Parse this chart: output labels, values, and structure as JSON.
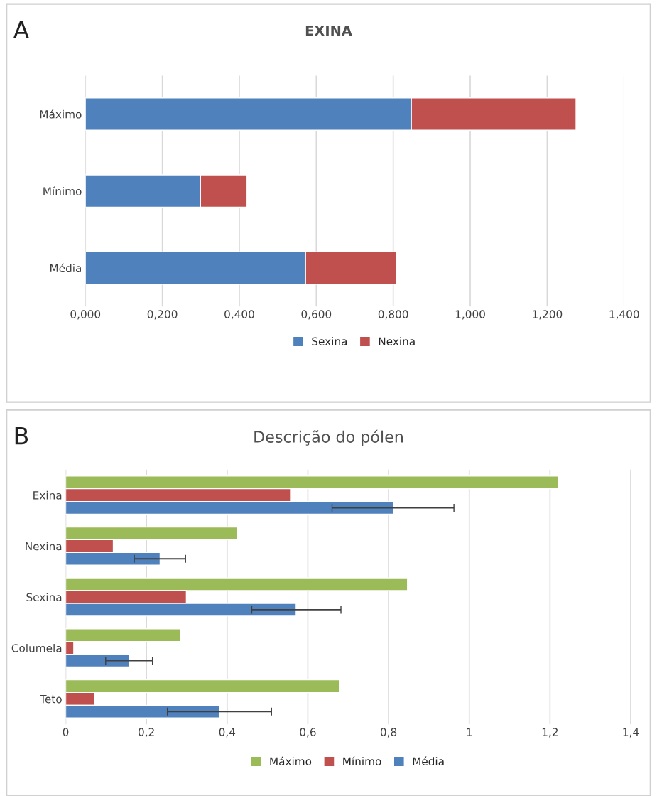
{
  "chart_data": [
    {
      "type": "bar",
      "orientation": "horizontal",
      "stacked": true,
      "title": "EXINA",
      "annotations": [
        "A"
      ],
      "categories": [
        "Máximo",
        "Mínimo",
        "Média"
      ],
      "series": [
        {
          "name": "Sexina",
          "color": "#4f81bd",
          "values": [
            0.847,
            0.299,
            0.572
          ]
        },
        {
          "name": "Nexina",
          "color": "#c0504d",
          "values": [
            0.428,
            0.121,
            0.236
          ]
        }
      ],
      "xlim": [
        0,
        1.4
      ],
      "xticks": [
        {
          "value": 0,
          "label": "0,000"
        },
        {
          "value": 0.2,
          "label": "0,200"
        },
        {
          "value": 0.4,
          "label": "0,400"
        },
        {
          "value": 0.6,
          "label": "0,600"
        },
        {
          "value": 0.8,
          "label": "0,800"
        },
        {
          "value": 1.0,
          "label": "1,000"
        },
        {
          "value": 1.2,
          "label": "1,200"
        },
        {
          "value": 1.4,
          "label": "1,400"
        }
      ],
      "grid": "x",
      "legend": "bottom"
    },
    {
      "type": "bar",
      "orientation": "horizontal",
      "title": "Descrição do pólen",
      "annotations": [
        "B"
      ],
      "categories": [
        "Exina",
        "Nexina",
        "Sexina",
        "Columela",
        "Teto"
      ],
      "series": [
        {
          "name": "Máximo",
          "color": "#9bbb59",
          "values": [
            1.22,
            0.425,
            0.847,
            0.284,
            0.678
          ]
        },
        {
          "name": "Mínimo",
          "color": "#c0504d",
          "values": [
            0.557,
            0.118,
            0.299,
            0.02,
            0.071
          ]
        },
        {
          "name": "Média",
          "color": "#4f81bd",
          "values": [
            0.812,
            0.234,
            0.571,
            0.157,
            0.381
          ],
          "errors": [
            [
              0.66,
              0.962
            ],
            [
              0.17,
              0.297
            ],
            [
              0.461,
              0.682
            ],
            [
              0.099,
              0.215
            ],
            [
              0.252,
              0.51
            ]
          ]
        }
      ],
      "xlim": [
        0,
        1.4
      ],
      "xticks": [
        0,
        {
          "value": 0.2,
          "label": "0,2"
        },
        {
          "value": 0.4,
          "label": "0,4"
        },
        {
          "value": 0.6,
          "label": "0,6"
        },
        {
          "value": 0.8,
          "label": "0,8"
        },
        1,
        {
          "value": 1.2,
          "label": "1,2"
        },
        {
          "value": 1.4,
          "label": "1,4"
        }
      ],
      "grid": "x",
      "legend": "bottom"
    }
  ]
}
